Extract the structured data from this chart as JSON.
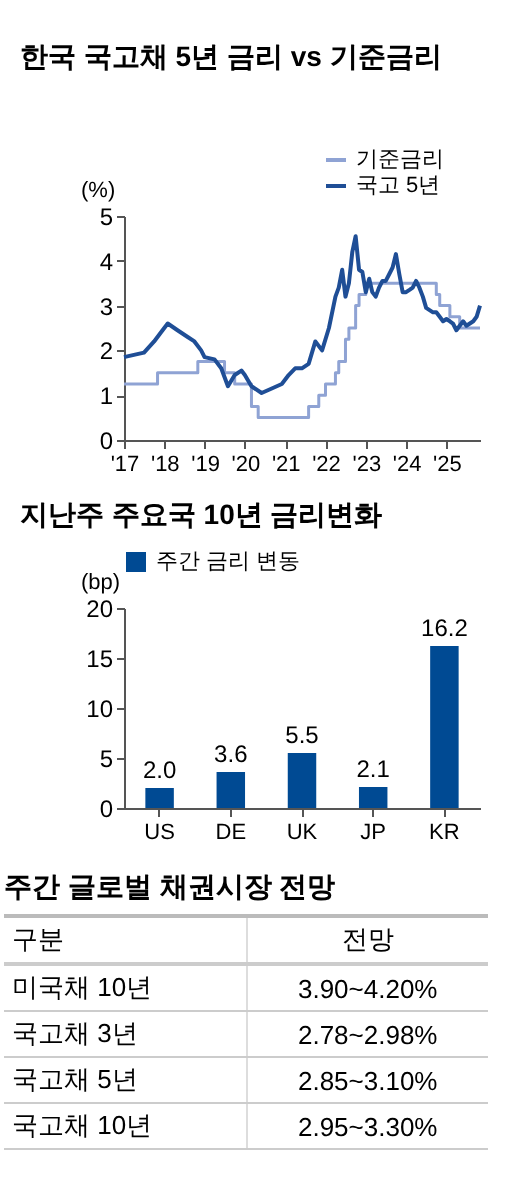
{
  "chart_data": [
    {
      "type": "line",
      "title": "한국 국고채 5년 금리 vs 기준금리",
      "ylabel": "(%)",
      "ylim": [
        0,
        5
      ],
      "yticks": [
        0,
        1,
        2,
        3,
        4,
        5
      ],
      "xlim": [
        "2017-01",
        "2025-11"
      ],
      "xticks": [
        {
          "value": "2017-01",
          "label": "'17"
        },
        {
          "value": "2018-01",
          "label": "'18"
        },
        {
          "value": "2019-01",
          "label": "'19"
        },
        {
          "value": "2020-01",
          "label": "'20"
        },
        {
          "value": "2021-01",
          "label": "'21"
        },
        {
          "value": "2022-01",
          "label": "'22"
        },
        {
          "value": "2023-01",
          "label": "'23"
        },
        {
          "value": "2024-01",
          "label": "'24"
        },
        {
          "value": "2025-01",
          "label": "'25"
        }
      ],
      "grid": false,
      "legend": "top right",
      "series": [
        {
          "name": "기준금리",
          "type": "step",
          "color": "#8fa3d4",
          "x": [
            "2017-01",
            "2017-11",
            "2018-11",
            "2019-07",
            "2019-10",
            "2020-03",
            "2020-05",
            "2021-08",
            "2021-11",
            "2022-01",
            "2022-04",
            "2022-05",
            "2022-07",
            "2022-08",
            "2022-10",
            "2022-11",
            "2023-01",
            "2024-10",
            "2024-11",
            "2025-02",
            "2025-05",
            "2025-11"
          ],
          "values": [
            1.25,
            1.5,
            1.75,
            1.5,
            1.25,
            0.75,
            0.5,
            0.75,
            1.0,
            1.25,
            1.5,
            1.75,
            2.25,
            2.5,
            3.0,
            3.25,
            3.5,
            3.25,
            3.0,
            2.75,
            2.5,
            2.5
          ]
        },
        {
          "name": "국고 5년",
          "type": "line",
          "color": "#1f4e96",
          "x": [
            "2017-01",
            "2017-04",
            "2017-07",
            "2017-10",
            "2017-12",
            "2018-02",
            "2018-05",
            "2018-08",
            "2018-10",
            "2018-12",
            "2019-01",
            "2019-04",
            "2019-06",
            "2019-08",
            "2019-10",
            "2019-12",
            "2020-01",
            "2020-03",
            "2020-06",
            "2020-09",
            "2020-12",
            "2021-02",
            "2021-04",
            "2021-06",
            "2021-08",
            "2021-10",
            "2021-12",
            "2022-02",
            "2022-04",
            "2022-05",
            "2022-06",
            "2022-07",
            "2022-08",
            "2022-09",
            "2022-10",
            "2022-11",
            "2022-12",
            "2023-01",
            "2023-02",
            "2023-03",
            "2023-04",
            "2023-05",
            "2023-06",
            "2023-07",
            "2023-08",
            "2023-09",
            "2023-10",
            "2023-11",
            "2023-12",
            "2024-01",
            "2024-02",
            "2024-03",
            "2024-04",
            "2024-05",
            "2024-06",
            "2024-07",
            "2024-08",
            "2024-09",
            "2024-10",
            "2024-11",
            "2024-12",
            "2025-01",
            "2025-02",
            "2025-03",
            "2025-04",
            "2025-05",
            "2025-06",
            "2025-07",
            "2025-08",
            "2025-09",
            "2025-10",
            "2025-11"
          ],
          "values": [
            1.85,
            1.9,
            1.95,
            2.2,
            2.4,
            2.6,
            2.45,
            2.3,
            2.2,
            2.0,
            1.85,
            1.8,
            1.6,
            1.2,
            1.45,
            1.55,
            1.45,
            1.2,
            1.05,
            1.15,
            1.25,
            1.45,
            1.6,
            1.6,
            1.7,
            2.2,
            2.0,
            2.5,
            3.2,
            3.4,
            3.8,
            3.2,
            3.5,
            4.2,
            4.55,
            3.8,
            3.75,
            3.3,
            3.6,
            3.3,
            3.2,
            3.4,
            3.55,
            3.55,
            3.7,
            3.85,
            4.15,
            3.7,
            3.3,
            3.3,
            3.35,
            3.4,
            3.55,
            3.4,
            3.2,
            2.95,
            2.9,
            2.85,
            2.85,
            2.75,
            2.65,
            2.7,
            2.65,
            2.6,
            2.45,
            2.55,
            2.65,
            2.55,
            2.6,
            2.65,
            2.75,
            3.0
          ]
        }
      ]
    },
    {
      "type": "bar",
      "title": "지난주 주요국 10년 금리변화",
      "ylabel": "(bp)",
      "ylim": [
        0,
        20
      ],
      "yticks": [
        0,
        5,
        10,
        15,
        20
      ],
      "grid": false,
      "legend": "top",
      "categories": [
        "US",
        "DE",
        "UK",
        "JP",
        "KR"
      ],
      "series": [
        {
          "name": "주간 금리 변동",
          "color": "#004a93",
          "values": [
            2.0,
            3.6,
            5.5,
            2.1,
            16.2
          ],
          "value_labels": [
            "2.0",
            "3.6",
            "5.5",
            "2.1",
            "16.2"
          ]
        }
      ]
    },
    {
      "type": "other",
      "title": "주간 글로벌 채권시장 전망",
      "annotations": [
        "구분",
        "전망",
        "미국채 10년",
        "3.90~4.20%",
        "국고채 3년",
        "2.78~2.98%",
        "국고채 5년",
        "2.85~3.10%",
        "국고채 10년",
        "2.95~3.30%"
      ]
    }
  ]
}
